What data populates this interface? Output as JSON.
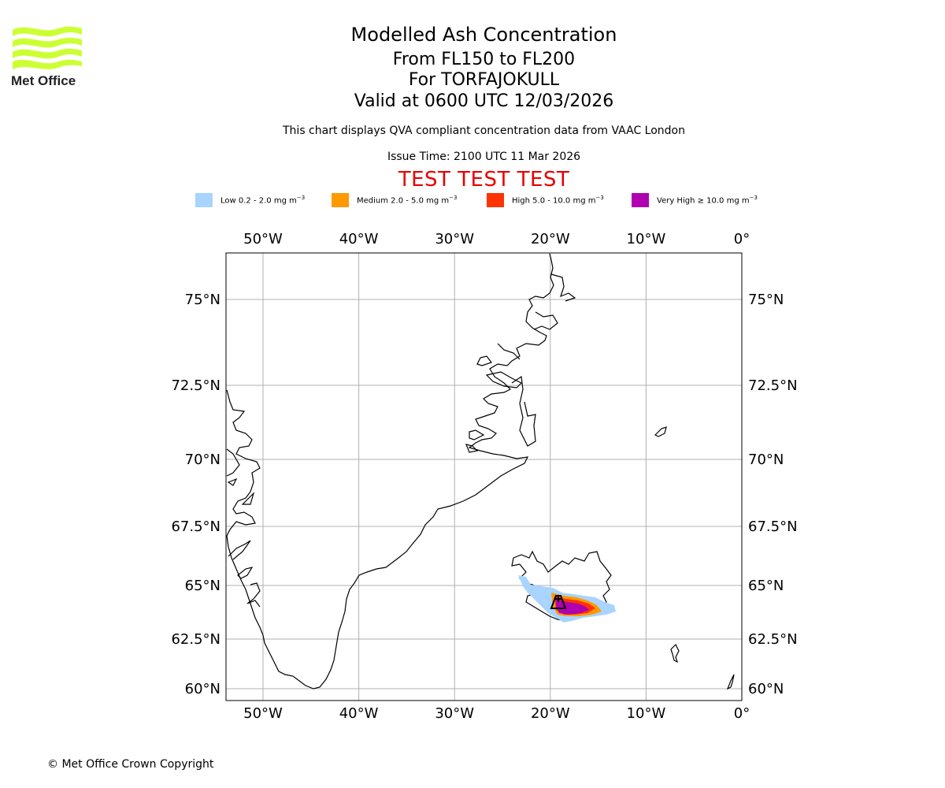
{
  "brand": {
    "name": "Met Office",
    "logo_color": "#ccff33"
  },
  "header": {
    "title": "Modelled Ash Concentration",
    "level_range": "From FL150 to FL200",
    "volcano": "For TORFAJOKULL",
    "valid_time": "Valid at 0600 UTC 12/03/2026",
    "description": "This chart displays QVA compliant concentration data from VAAC London",
    "issue_time": "Issue Time: 2100 UTC 11 Mar 2026",
    "test_banner": "TEST TEST TEST",
    "test_banner_color": "#e80000"
  },
  "legend": [
    {
      "name": "low",
      "label": "Low 0.2 - 2.0 mg m",
      "unit_sup": "−3",
      "color": "#a8d4ff"
    },
    {
      "name": "medium",
      "label": "Medium 2.0 - 5.0 mg m",
      "unit_sup": "−3",
      "color": "#ff9900"
    },
    {
      "name": "high",
      "label": "High 5.0 - 10.0 mg m",
      "unit_sup": "−3",
      "color": "#ff3300"
    },
    {
      "name": "very-high",
      "label": "Very High  ≥  10.0 mg m",
      "unit_sup": "−3",
      "color": "#b000b0"
    }
  ],
  "map": {
    "lon_ticks": [
      "50°W",
      "40°W",
      "30°W",
      "20°W",
      "10°W",
      "0°"
    ],
    "lat_ticks": [
      "75°N",
      "72.5°N",
      "70°N",
      "67.5°N",
      "65°N",
      "62.5°N",
      "60°N"
    ],
    "lon_values": [
      -50,
      -40,
      -30,
      -20,
      -10,
      0
    ],
    "lat_values": [
      75,
      72.5,
      70,
      67.5,
      65,
      62.5,
      60
    ],
    "extent": {
      "lon_min": -54,
      "lon_max": 0,
      "lat_min": 59.5,
      "lat_max": 76.5
    },
    "gridline_color": "#b0b0b0",
    "volcano_marker": {
      "name": "TORFAJOKULL",
      "lat": 63.9,
      "lon": -19.1
    }
  },
  "footer": {
    "copyright": "© Met Office Crown Copyright"
  }
}
